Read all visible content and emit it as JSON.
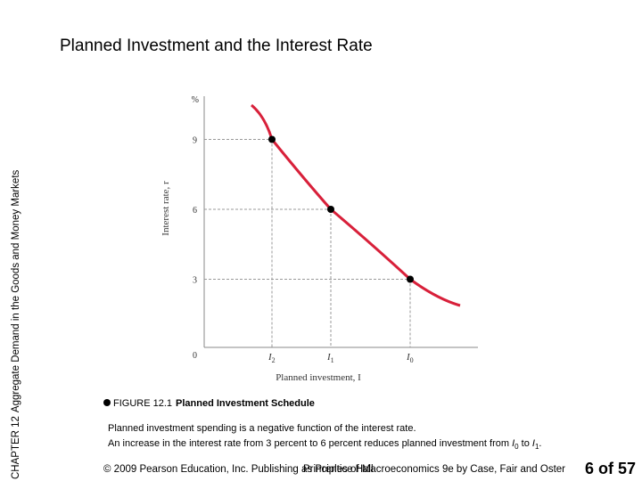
{
  "side_label": {
    "chapter": "CHAPTER 12",
    "text": "Aggregate Demand in the Goods and Money Markets"
  },
  "title": "Planned Investment and the Interest Rate",
  "chart_data": {
    "type": "line",
    "title": "",
    "xlabel": "Planned investment, I",
    "ylabel": "Interest rate, r",
    "y_unit": "%",
    "origin_label": "0",
    "y_ticks": [
      {
        "value": 3,
        "label": "3"
      },
      {
        "value": 6,
        "label": "6"
      },
      {
        "value": 9,
        "label": "9"
      }
    ],
    "x_ticks": [
      {
        "label": "I2",
        "base": "I",
        "sub": "2"
      },
      {
        "label": "I1",
        "base": "I",
        "sub": "1"
      },
      {
        "label": "I0",
        "base": "I",
        "sub": "0"
      }
    ],
    "points": [
      {
        "x": "I2",
        "y": 9
      },
      {
        "x": "I1",
        "y": 6
      },
      {
        "x": "I0",
        "y": 3
      }
    ],
    "curve_color": "#d8203a",
    "point_color": "#000000",
    "dashed_guides": true
  },
  "caption": {
    "figure_id": "FIGURE 12.1",
    "figure_name": "Planned Investment Schedule",
    "line1": "Planned investment spending is a negative function of the interest rate.",
    "line2_prefix": "An increase in the interest rate from 3 percent to 6 percent reduces planned investment from ",
    "line2_from_base": "I",
    "line2_from_sub": "0",
    "line2_mid": " to ",
    "line2_to_base": "I",
    "line2_to_sub": "1",
    "line2_suffix": "."
  },
  "footer": {
    "copyright": "© 2009 Pearson Education, Inc. Publishing as Prentice Hall",
    "book": "Principles of Macroeconomics 9e by Case, Fair and Oster",
    "slide_number": "6 of 57"
  }
}
